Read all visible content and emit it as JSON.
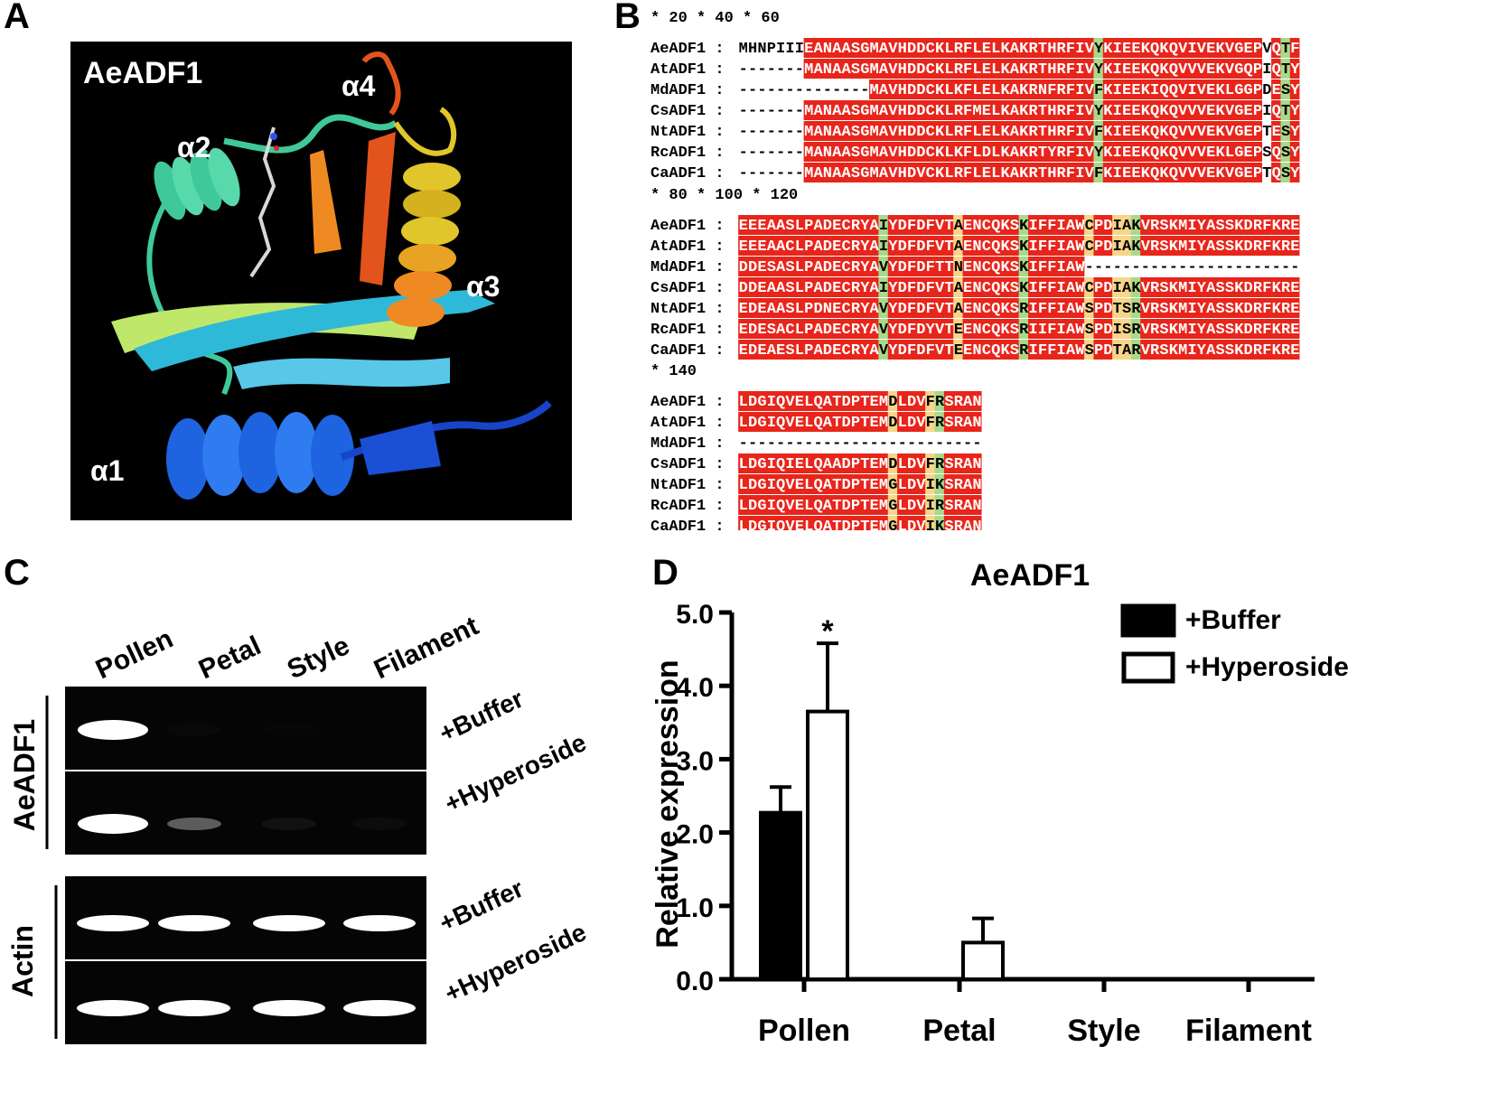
{
  "panels": {
    "a": "A",
    "b": "B",
    "c": "C",
    "d": "D"
  },
  "structure": {
    "title": "AeADF1",
    "helix_labels": [
      "α1",
      "α2",
      "α3",
      "α4"
    ],
    "colors": {
      "background": "#000000",
      "a1": "#1e63e0",
      "a2": "#3fc99a",
      "a3": "#e0c62a",
      "a4": "#e2541c",
      "strand_cyan": "#2fb9d8",
      "strand_lime": "#bfe86a",
      "strand_orange": "#ef8a23"
    }
  },
  "alignment": {
    "blocks": [
      {
        "ruler": "            *        20         *        40         *        60",
        "rows": [
          {
            "name": "AeADF1",
            "sep": " : ",
            "seq": "MHNPIIIEANAASGMAVHDDCKLRFLELKAKRTHRFIVYKIEEKQKQVIVEKVGEPVQTF"
          },
          {
            "name": "AtADF1",
            "sep": " : ",
            "seq": "-------MANAASGMAVHDDCKLRFLELKAKRTHRFIVYKIEEKQKQVVVEKVGQPIQTY"
          },
          {
            "name": "MdADF1",
            "sep": " : ",
            "seq": "--------------MAVHDDCKLKFLELKAKRNFRFIVFKIEEKIQQVIVEKLGGPDESY"
          },
          {
            "name": "CsADF1",
            "sep": " : ",
            "seq": "-------MANAASGMAVHDDCKLRFMELKAKRTHRFIVYKIEEKQKQVVVEKVGEPIQTY"
          },
          {
            "name": "NtADF1",
            "sep": " : ",
            "seq": "-------MANAASGMAVHDDCKLRFLELKAKRTHRFIVFKIEEKQKQVVVEKVGEPTESY"
          },
          {
            "name": "RcADF1",
            "sep": " : ",
            "seq": "-------MANAASGMAVHDDCKLKFLDLKAKRTYRFIVYKIEEKQKQVVVEKLGEPSQSY"
          },
          {
            "name": "CaADF1",
            "sep": " : ",
            "seq": "-------MANAASGMAVHDVCKLRFLELKAKRTHRFIVFKIEEKQKQVVVEKVGEPTQSY"
          }
        ]
      },
      {
        "ruler": "         *        80         *       100         *       120",
        "rows": [
          {
            "name": "AeADF1",
            "sep": " : ",
            "seq": "EEEAASLPADECRYAIYDFDFVTAENCQKSKIFFIAWCPDIAKVRSKMIYASSKDRFKRE"
          },
          {
            "name": "AtADF1",
            "sep": " : ",
            "seq": "EEEAACLPADECRYAIYDFDFVTAENCQKSKIFFIAWCPDIAKVRSKMIYASSKDRFKRE"
          },
          {
            "name": "MdADF1",
            "sep": " : ",
            "seq": "DDESASLPADECRYAVYDFDFTTNENCQKSKIFFIAW-----------------------"
          },
          {
            "name": "CsADF1",
            "sep": " : ",
            "seq": "DDEAASLPADECRYAIYDFDFVTAENCQKSKIFFIAWCPDIAKVRSKMIYASSKDRFKRE"
          },
          {
            "name": "NtADF1",
            "sep": " : ",
            "seq": "EDEAASLPDNECRYAVYDFDFVTAENCQKSRIFFIAWSPDTSRVRSKMIYASSKDRFKRE"
          },
          {
            "name": "RcADF1",
            "sep": " : ",
            "seq": "EDESACLPADECRYAVYDFDYVTEENCQKSRIIFIAWSPDISRVRSKMIYASSKDRFKRE"
          },
          {
            "name": "CaADF1",
            "sep": " : ",
            "seq": "EDEAESLPADECRYAVYDFDFVTEENCQKSRIFFIAWSPDTARVRSKMIYASSKDRFKRE"
          }
        ]
      },
      {
        "ruler": "         *       140",
        "rows": [
          {
            "name": "AeADF1",
            "sep": " : ",
            "seq": "LDGIQVELQATDPTEMDLDVFRSRAN"
          },
          {
            "name": "AtADF1",
            "sep": " : ",
            "seq": "LDGIQVELQATDPTEMDLDVFRSRAN"
          },
          {
            "name": "MdADF1",
            "sep": " : ",
            "seq": "--------------------------"
          },
          {
            "name": "CsADF1",
            "sep": " : ",
            "seq": "LDGIQIELQAADPTEMDLDVFRSRAN"
          },
          {
            "name": "NtADF1",
            "sep": " : ",
            "seq": "LDGIQVELQATDPTEMGLDVIKSRAN"
          },
          {
            "name": "RcADF1",
            "sep": " : ",
            "seq": "LDGIQVELQATDPTEMGLDVIRSRAN"
          },
          {
            "name": "CaADF1",
            "sep": " : ",
            "seq": "LDGIQVELQATDPTEMGLDVIKSRAN"
          }
        ]
      }
    ],
    "colors": {
      "identical": "#e8251b",
      "similar": "#a9d98a",
      "weak": "#f7d58a",
      "identical_text": "#ffffff"
    }
  },
  "gel": {
    "lanes": [
      "Pollen",
      "Petal",
      "Style",
      "Filament"
    ],
    "gene_labels": [
      "AeADF1",
      "Actin"
    ],
    "conditions": [
      "+Buffer",
      "+Hyperoside",
      "+Buffer",
      "+Hyperoside"
    ],
    "band_intensity": {
      "AeADF1 +Buffer": [
        1.0,
        0.02,
        0.01,
        0
      ],
      "AeADF1 +Hyperoside": [
        1.0,
        0.35,
        0.05,
        0.03
      ],
      "Actin +Buffer": [
        1.0,
        1.0,
        1.0,
        1.0
      ],
      "Actin +Hyperoside": [
        1.0,
        1.0,
        1.0,
        1.0
      ]
    }
  },
  "chart_data": {
    "type": "bar",
    "title": "AeADF1",
    "categories": [
      "Pollen",
      "Petal",
      "Style",
      "Filament"
    ],
    "series": [
      {
        "name": "+Buffer",
        "values": [
          2.27,
          0,
          0,
          0
        ],
        "errors": [
          0.35,
          0,
          0,
          0
        ],
        "fill": "#000000"
      },
      {
        "name": "+Hyperoside",
        "values": [
          3.65,
          0.5,
          0,
          0
        ],
        "errors": [
          0.93,
          0.33,
          0,
          0
        ],
        "fill": "#ffffff"
      }
    ],
    "ylabel": "Relative expression",
    "xlabel": "",
    "ylim": [
      0,
      5
    ],
    "yticks": [
      "0.0",
      "1.0",
      "2.0",
      "3.0",
      "4.0",
      "5.0"
    ],
    "annotations": [
      "*"
    ],
    "legend_position": "top-right",
    "grid": false
  }
}
